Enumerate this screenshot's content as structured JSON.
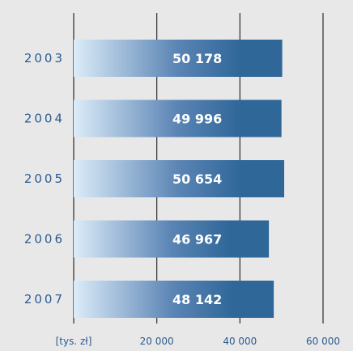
{
  "colors": {
    "background": "#e8e8e9",
    "bar_light": "#dcecf9",
    "bar_mid": "#5a84b4",
    "bar_dark": "#2f6799",
    "text": "#2c5b8e",
    "value_text": "#ffffff",
    "gridline": "#2b2b2b"
  },
  "chart_data": {
    "type": "bar",
    "orientation": "horizontal",
    "categories": [
      "2003",
      "2004",
      "2005",
      "2006",
      "2007"
    ],
    "values": [
      50178,
      49996,
      50654,
      46967,
      48142
    ],
    "value_labels": [
      "50 178",
      "49 996",
      "50 654",
      "46 967",
      "48 142"
    ],
    "xlim": [
      0,
      60000
    ],
    "x_ticks": [
      {
        "value": 0,
        "label": "[tys. zł]"
      },
      {
        "value": 20000,
        "label": "20 000"
      },
      {
        "value": 40000,
        "label": "40 000"
      },
      {
        "value": 60000,
        "label": "60 000"
      }
    ],
    "grid": true,
    "legend": "none"
  }
}
